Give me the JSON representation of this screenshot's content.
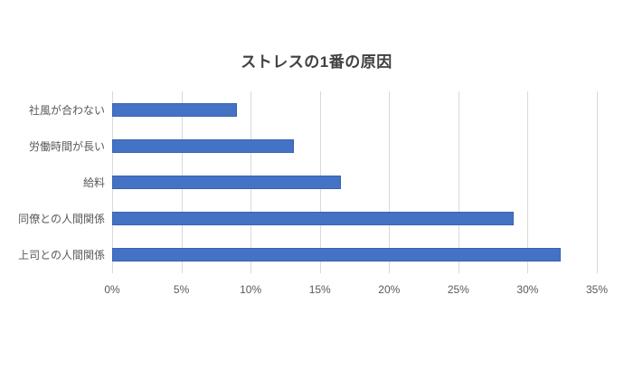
{
  "chart_data": {
    "type": "bar",
    "orientation": "horizontal",
    "title": "ストレスの1番の原因",
    "categories": [
      "社風が合わない",
      "労働時間が長い",
      "給料",
      "同僚との人間関係",
      "上司との人間関係"
    ],
    "values": [
      9.0,
      13.1,
      16.5,
      29.0,
      32.4
    ],
    "xlabel": "",
    "ylabel": "",
    "xlim": [
      0,
      35
    ],
    "x_tick_step": 5,
    "x_tick_labels": [
      "0%",
      "5%",
      "10%",
      "15%",
      "20%",
      "25%",
      "30%",
      "35%"
    ],
    "grid": true,
    "legend": false,
    "colors": {
      "bar_fill": "#4472C4",
      "bar_border": "#3A63B0",
      "gridline": "#D9D9D9",
      "title_text": "#404040",
      "axis_text": "#595959",
      "background": "#FFFFFF"
    }
  }
}
